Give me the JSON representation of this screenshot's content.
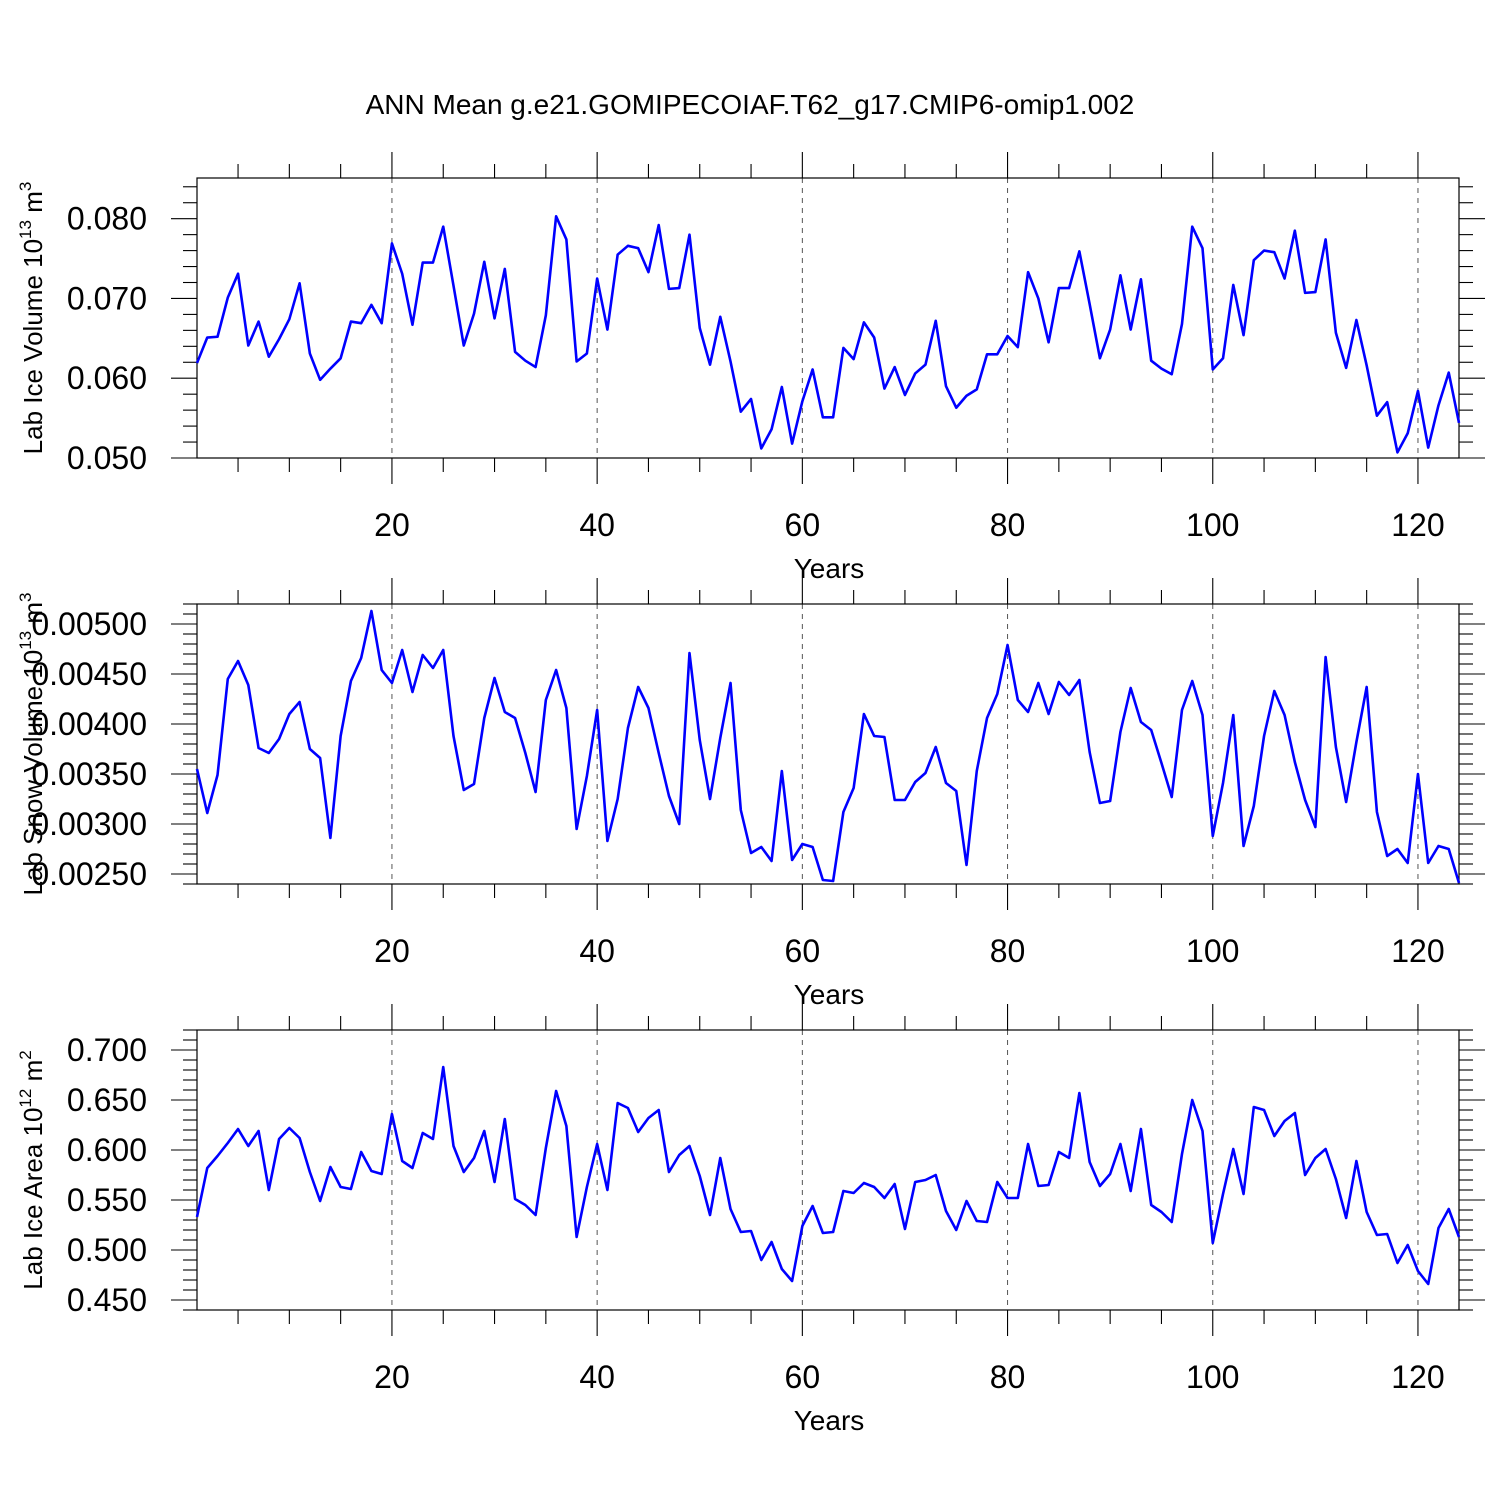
{
  "title": "ANN Mean g.e21.GOMIPECOIAF.T62_g17.CMIP6-omip1.002",
  "line_color": "#0000ff",
  "chart_data": [
    {
      "type": "line",
      "xlabel": "Years",
      "ylabel": "Lab Ice Volume 10",
      "ylabel_sup1": "13",
      "ylabel_mid": " m",
      "ylabel_sup2": "3",
      "xlim": [
        1,
        124
      ],
      "ylim": [
        0.05,
        0.0851
      ],
      "grid": "x-dashed",
      "xticks": [
        20,
        40,
        60,
        80,
        100,
        120
      ],
      "xtick_labels": [
        "20",
        "40",
        "60",
        "80",
        "100",
        "120"
      ],
      "yticks": [
        0.05,
        0.06,
        0.07,
        0.08
      ],
      "ytick_labels": [
        "0.050",
        "0.060",
        "0.070",
        "0.080"
      ],
      "series": [
        {
          "values": [
            0.0619,
            0.0651,
            0.0652,
            0.0701,
            0.0731,
            0.0641,
            0.0671,
            0.0627,
            0.0649,
            0.0674,
            0.0719,
            0.0631,
            0.0598,
            0.0612,
            0.0625,
            0.0671,
            0.0669,
            0.0692,
            0.0669,
            0.0769,
            0.0731,
            0.0667,
            0.0745,
            0.0745,
            0.079,
            0.0716,
            0.0641,
            0.0681,
            0.0746,
            0.0675,
            0.0737,
            0.0633,
            0.0622,
            0.0614,
            0.0679,
            0.0803,
            0.0774,
            0.0621,
            0.0631,
            0.0725,
            0.0661,
            0.0755,
            0.0766,
            0.0763,
            0.0733,
            0.0792,
            0.0712,
            0.0713,
            0.078,
            0.0663,
            0.0617,
            0.0677,
            0.0621,
            0.0558,
            0.0574,
            0.0512,
            0.0536,
            0.0589,
            0.0518,
            0.0571,
            0.0611,
            0.0551,
            0.0551,
            0.0638,
            0.0624,
            0.067,
            0.0651,
            0.0587,
            0.0614,
            0.0579,
            0.0606,
            0.0617,
            0.0672,
            0.059,
            0.0563,
            0.0578,
            0.0586,
            0.063,
            0.063,
            0.0653,
            0.0639,
            0.0733,
            0.07,
            0.0645,
            0.0713,
            0.0713,
            0.0759,
            0.0693,
            0.0625,
            0.0661,
            0.0729,
            0.0661,
            0.0724,
            0.0622,
            0.0612,
            0.0605,
            0.0668,
            0.079,
            0.0763,
            0.0611,
            0.0625,
            0.0717,
            0.0654,
            0.0748,
            0.076,
            0.0758,
            0.0725,
            0.0785,
            0.0707,
            0.0708,
            0.0774,
            0.0657,
            0.0613,
            0.0673,
            0.0616,
            0.0553,
            0.057,
            0.0507,
            0.0531,
            0.0584,
            0.0513,
            0.0566,
            0.0607,
            0.0544
          ]
        }
      ]
    },
    {
      "type": "line",
      "xlabel": "Years",
      "ylabel": "Lab Snow Volume 10",
      "ylabel_sup1": "13",
      "ylabel_mid": " m",
      "ylabel_sup2": "3",
      "xlim": [
        1,
        124
      ],
      "ylim": [
        0.0024,
        0.0052
      ],
      "grid": "x-dashed",
      "xticks": [
        20,
        40,
        60,
        80,
        100,
        120
      ],
      "xtick_labels": [
        "20",
        "40",
        "60",
        "80",
        "100",
        "120"
      ],
      "yticks": [
        0.0025,
        0.003,
        0.0035,
        0.004,
        0.0045,
        0.005
      ],
      "ytick_labels": [
        "0.00250",
        "0.00300",
        "0.00350",
        "0.00400",
        "0.00450",
        "0.00500"
      ],
      "series": [
        {
          "values": [
            0.00355,
            0.00311,
            0.00349,
            0.00445,
            0.00463,
            0.00439,
            0.00376,
            0.00371,
            0.00385,
            0.0041,
            0.00422,
            0.00375,
            0.00366,
            0.00286,
            0.00388,
            0.00443,
            0.00466,
            0.00513,
            0.00454,
            0.00441,
            0.00474,
            0.00432,
            0.00469,
            0.00456,
            0.00474,
            0.00388,
            0.00334,
            0.0034,
            0.00406,
            0.00446,
            0.00412,
            0.00406,
            0.00371,
            0.00332,
            0.00424,
            0.00454,
            0.00416,
            0.00295,
            0.00348,
            0.00414,
            0.00283,
            0.00325,
            0.00396,
            0.00437,
            0.00416,
            0.00371,
            0.00328,
            0.003,
            0.00471,
            0.00384,
            0.00325,
            0.00386,
            0.00441,
            0.00314,
            0.00271,
            0.00277,
            0.00263,
            0.00353,
            0.00264,
            0.0028,
            0.00277,
            0.00244,
            0.00243,
            0.00312,
            0.00336,
            0.0041,
            0.00388,
            0.00387,
            0.00324,
            0.00324,
            0.00342,
            0.00351,
            0.00377,
            0.00341,
            0.00333,
            0.00259,
            0.00353,
            0.00406,
            0.0043,
            0.00479,
            0.00424,
            0.00412,
            0.00441,
            0.0041,
            0.00442,
            0.00429,
            0.00444,
            0.00372,
            0.00321,
            0.00323,
            0.00392,
            0.00436,
            0.00402,
            0.00394,
            0.00361,
            0.00327,
            0.00414,
            0.00443,
            0.00409,
            0.00288,
            0.00341,
            0.00409,
            0.00278,
            0.00318,
            0.00388,
            0.00433,
            0.00409,
            0.00362,
            0.00324,
            0.00297,
            0.00467,
            0.00377,
            0.00322,
            0.00382,
            0.00437,
            0.00312,
            0.00268,
            0.00275,
            0.00261,
            0.0035,
            0.00261,
            0.00278,
            0.00275,
            0.00241
          ]
        }
      ]
    },
    {
      "type": "line",
      "xlabel": "Years",
      "ylabel": "Lab Ice Area 10",
      "ylabel_sup1": "12",
      "ylabel_mid": " m",
      "ylabel_sup2": "2",
      "xlim": [
        1,
        124
      ],
      "ylim": [
        0.44,
        0.72
      ],
      "grid": "x-dashed",
      "xticks": [
        20,
        40,
        60,
        80,
        100,
        120
      ],
      "xtick_labels": [
        "20",
        "40",
        "60",
        "80",
        "100",
        "120"
      ],
      "yticks": [
        0.45,
        0.5,
        0.55,
        0.6,
        0.65,
        0.7
      ],
      "ytick_labels": [
        "0.450",
        "0.500",
        "0.550",
        "0.600",
        "0.650",
        "0.700"
      ],
      "series": [
        {
          "values": [
            0.533,
            0.582,
            0.594,
            0.607,
            0.621,
            0.604,
            0.619,
            0.56,
            0.611,
            0.622,
            0.612,
            0.578,
            0.549,
            0.583,
            0.563,
            0.561,
            0.598,
            0.579,
            0.576,
            0.636,
            0.589,
            0.582,
            0.617,
            0.611,
            0.683,
            0.604,
            0.578,
            0.592,
            0.619,
            0.568,
            0.631,
            0.551,
            0.545,
            0.535,
            0.602,
            0.659,
            0.624,
            0.513,
            0.563,
            0.606,
            0.56,
            0.647,
            0.642,
            0.618,
            0.632,
            0.64,
            0.578,
            0.595,
            0.604,
            0.574,
            0.535,
            0.592,
            0.541,
            0.518,
            0.519,
            0.49,
            0.508,
            0.481,
            0.469,
            0.524,
            0.544,
            0.517,
            0.518,
            0.559,
            0.557,
            0.567,
            0.563,
            0.552,
            0.566,
            0.521,
            0.568,
            0.57,
            0.575,
            0.539,
            0.52,
            0.549,
            0.529,
            0.528,
            0.568,
            0.552,
            0.552,
            0.606,
            0.564,
            0.565,
            0.598,
            0.592,
            0.657,
            0.588,
            0.564,
            0.576,
            0.606,
            0.559,
            0.621,
            0.545,
            0.538,
            0.528,
            0.596,
            0.65,
            0.619,
            0.507,
            0.556,
            0.601,
            0.556,
            0.643,
            0.64,
            0.614,
            0.629,
            0.637,
            0.575,
            0.592,
            0.601,
            0.571,
            0.532,
            0.589,
            0.538,
            0.515,
            0.516,
            0.487,
            0.505,
            0.479,
            0.466,
            0.522,
            0.541,
            0.513
          ]
        }
      ]
    }
  ]
}
